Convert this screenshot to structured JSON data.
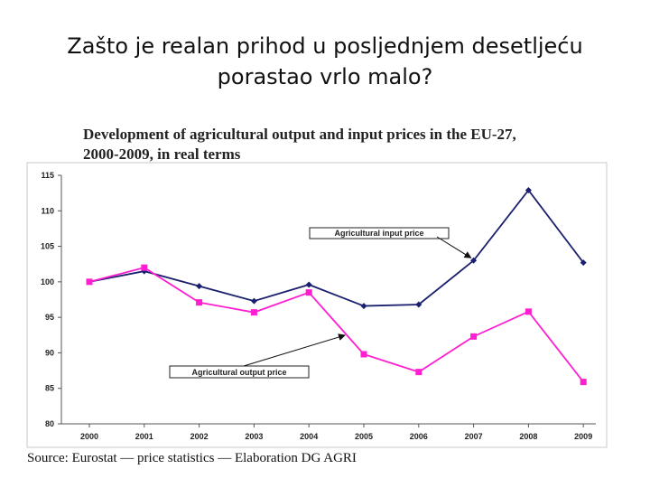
{
  "slide": {
    "title_line1": "Zašto je realan prihod u posljednjem desetljeću",
    "title_line2": "porastao vrlo malo?",
    "source": "Source: Eurostat — price statistics — Elaboration DG AGRI"
  },
  "chart_data": {
    "type": "line",
    "title_line1": "Development of agricultural output and input prices in the EU-27,",
    "title_line2": "2000-2009, in real terms",
    "categories": [
      "2000",
      "2001",
      "2002",
      "2003",
      "2004",
      "2005",
      "2006",
      "2007",
      "2008",
      "2009"
    ],
    "ylim": [
      80,
      115
    ],
    "yticks": [
      "80",
      "85",
      "90",
      "95",
      "100",
      "105",
      "110",
      "115"
    ],
    "series": [
      {
        "name": "Agricultural input price",
        "color": "#1a1f6e",
        "marker": "diamond",
        "values": [
          100,
          101.5,
          99.4,
          97.3,
          99.6,
          96.6,
          96.8,
          103.0,
          112.9,
          102.7
        ]
      },
      {
        "name": "Agricultural output price",
        "color": "#ff1fd0",
        "marker": "square",
        "values": [
          100,
          102,
          97.1,
          95.7,
          98.5,
          89.8,
          87.3,
          92.3,
          95.8,
          85.9
        ]
      }
    ],
    "annotations": [
      {
        "text": "Agricultural input price",
        "series": 0
      },
      {
        "text": "Agricultural output price",
        "series": 1
      }
    ]
  }
}
